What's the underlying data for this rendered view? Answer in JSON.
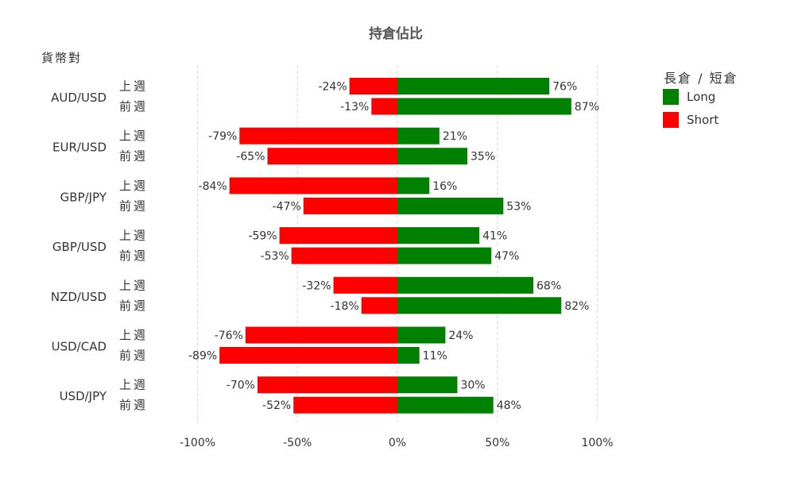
{
  "chart_data": {
    "type": "bar",
    "orientation": "horizontal",
    "stacked": "diverging",
    "title": "持倉佔比",
    "ylabel": "貨幣對",
    "xlim": [
      -100,
      100
    ],
    "xticks": [
      -100,
      -50,
      0,
      50,
      100
    ],
    "xtick_labels": [
      "-100%",
      "-50%",
      "0%",
      "50%",
      "100%"
    ],
    "grid": "vertical dashed",
    "legend": {
      "title": "長倉 / 短倉",
      "placement": "top-right"
    },
    "categories": [
      "AUD/USD",
      "EUR/USD",
      "GBP/JPY",
      "GBP/USD",
      "NZD/USD",
      "USD/CAD",
      "USD/JPY"
    ],
    "periods": [
      "上週",
      "前週"
    ],
    "series": [
      {
        "name": "Long",
        "color": "#008000",
        "values": [
          [
            76,
            87
          ],
          [
            21,
            35
          ],
          [
            16,
            53
          ],
          [
            41,
            47
          ],
          [
            68,
            82
          ],
          [
            24,
            11
          ],
          [
            30,
            48
          ]
        ],
        "labels": [
          [
            "76%",
            "87%"
          ],
          [
            "21%",
            "35%"
          ],
          [
            "16%",
            "53%"
          ],
          [
            "41%",
            "47%"
          ],
          [
            "68%",
            "82%"
          ],
          [
            "24%",
            "11%"
          ],
          [
            "30%",
            "48%"
          ]
        ]
      },
      {
        "name": "Short",
        "color": "#ff0000",
        "values": [
          [
            -24,
            -13
          ],
          [
            -79,
            -65
          ],
          [
            -84,
            -47
          ],
          [
            -59,
            -53
          ],
          [
            -32,
            -18
          ],
          [
            -76,
            -89
          ],
          [
            -70,
            -52
          ]
        ],
        "labels": [
          [
            "-24%",
            "-13%"
          ],
          [
            "-79%",
            "-65%"
          ],
          [
            "-84%",
            "-47%"
          ],
          [
            "-59%",
            "-53%"
          ],
          [
            "-32%",
            "-18%"
          ],
          [
            "-76%",
            "-89%"
          ],
          [
            "-70%",
            "-52%"
          ]
        ]
      }
    ]
  }
}
